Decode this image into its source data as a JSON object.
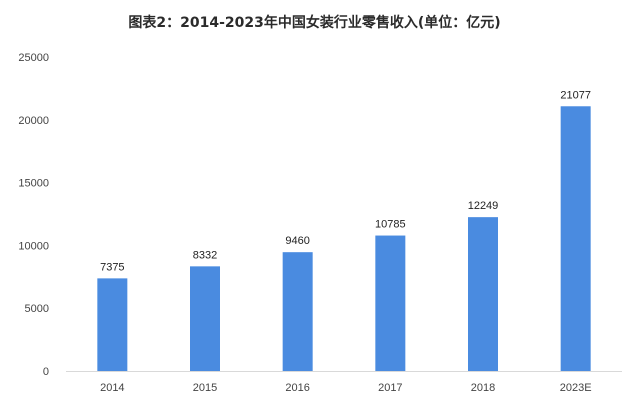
{
  "chart_data": {
    "type": "bar",
    "title": "图表2：2014-2023年中国女装行业零售收入(单位：亿元)",
    "categories": [
      "2014",
      "2015",
      "2016",
      "2017",
      "2018",
      "2023E"
    ],
    "values": [
      7375,
      8332,
      9460,
      10785,
      12249,
      21077
    ],
    "xlabel": "",
    "ylabel": "",
    "ylim": [
      0,
      25000
    ],
    "yticks": [
      0,
      5000,
      10000,
      15000,
      20000,
      25000
    ],
    "grid": false,
    "legend": "none",
    "colors": {
      "bar": "#4a8be0",
      "axis": "#d9d9d9",
      "text": "#444444"
    }
  }
}
